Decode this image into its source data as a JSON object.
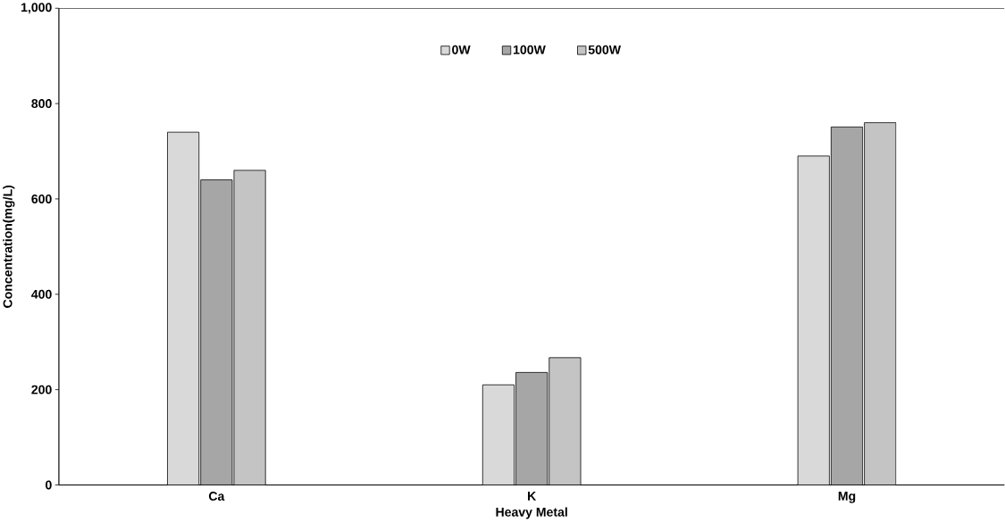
{
  "chart_data": {
    "type": "bar",
    "xlabel": "Heavy Metal",
    "ylabel": "Concentration(mg/L)",
    "categories": [
      "Ca",
      "K",
      "Mg"
    ],
    "series": [
      {
        "name": "0W",
        "color": "#d9d9d9",
        "values": [
          740,
          210,
          690
        ]
      },
      {
        "name": "100W",
        "color": "#a6a6a6",
        "values": [
          640,
          236,
          751
        ]
      },
      {
        "name": "500W",
        "color": "#c4c4c4",
        "values": [
          660,
          267,
          760
        ]
      }
    ],
    "ylim": [
      0,
      1000
    ],
    "yticks": [
      0,
      200,
      400,
      600,
      800,
      {
        "value": 1000,
        "label": "1,000"
      }
    ],
    "grid": false,
    "legend": "top"
  }
}
